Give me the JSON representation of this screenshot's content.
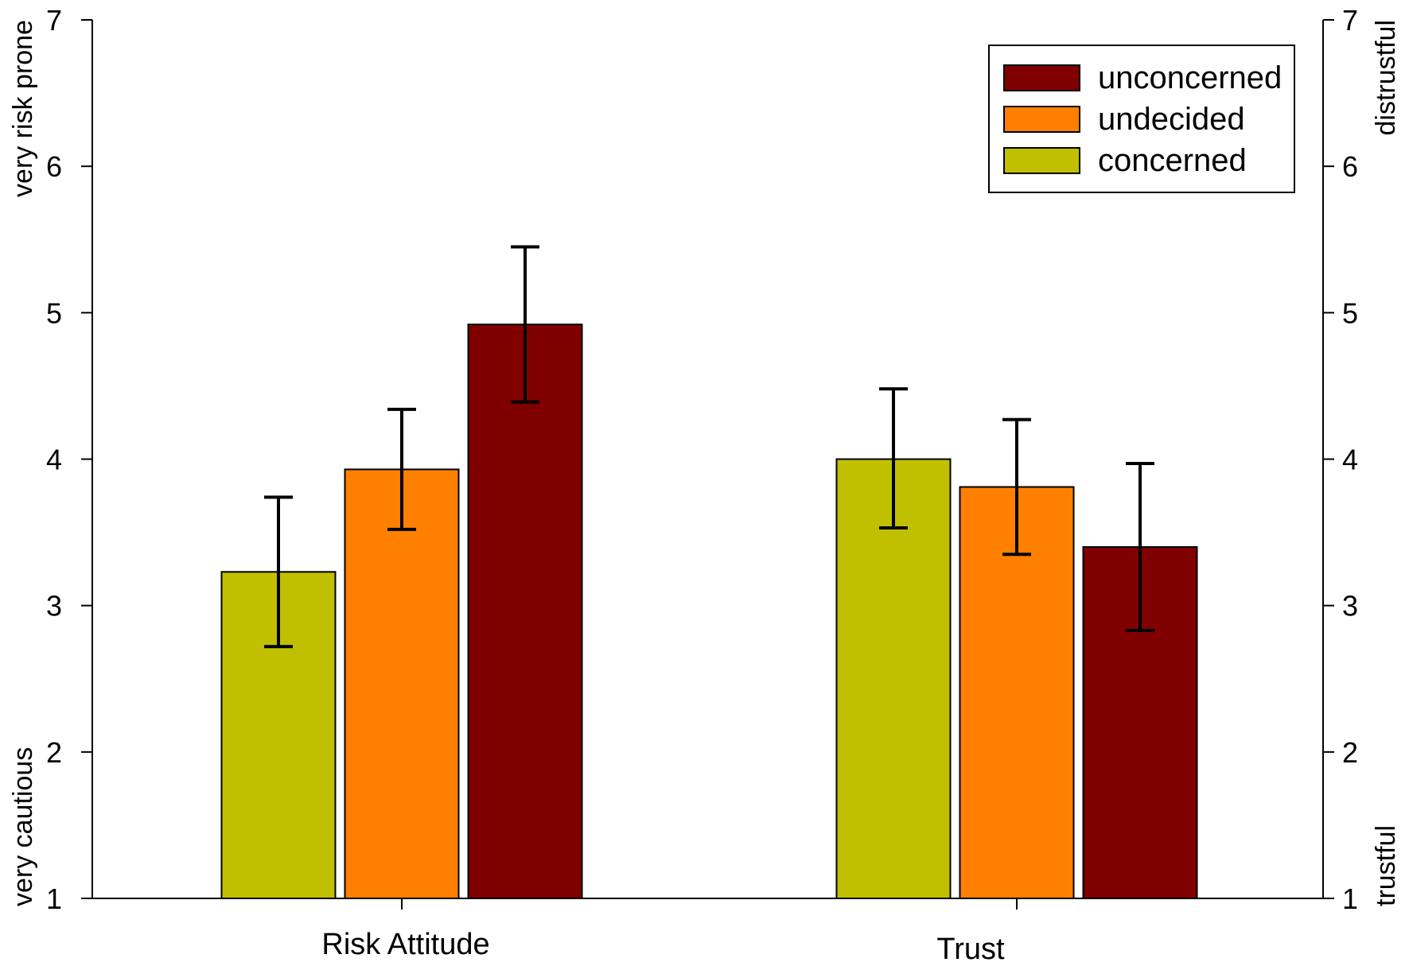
{
  "chart_data": {
    "type": "bar",
    "categories": [
      "Risk Attitude",
      "Trust"
    ],
    "series": [
      {
        "name": "concerned",
        "color": "#c0c000",
        "values": [
          3.23,
          4.0
        ],
        "error_low": [
          2.72,
          3.53
        ],
        "error_high": [
          3.74,
          4.48
        ]
      },
      {
        "name": "undecided",
        "color": "#ff8000",
        "values": [
          3.93,
          3.81
        ],
        "error_low": [
          3.52,
          3.35
        ],
        "error_high": [
          4.34,
          4.27
        ]
      },
      {
        "name": "unconcerned",
        "color": "#800000",
        "values": [
          4.92,
          3.4
        ],
        "error_low": [
          4.39,
          2.83
        ],
        "error_high": [
          5.45,
          3.97
        ]
      }
    ],
    "legend_order": [
      "unconcerned",
      "undecided",
      "concerned"
    ],
    "legend_position": "top-right",
    "ylim": [
      1,
      7
    ],
    "yticks": [
      "1",
      "2",
      "3",
      "4",
      "5",
      "6",
      "7"
    ],
    "y2ticks": [
      "1",
      "2",
      "3",
      "4",
      "5",
      "6",
      "7"
    ],
    "left_axis_labels": {
      "top": "very risk prone",
      "bottom": "very cautious"
    },
    "right_axis_labels": {
      "top": "distrustful",
      "bottom": "trustful"
    },
    "grid": false
  }
}
